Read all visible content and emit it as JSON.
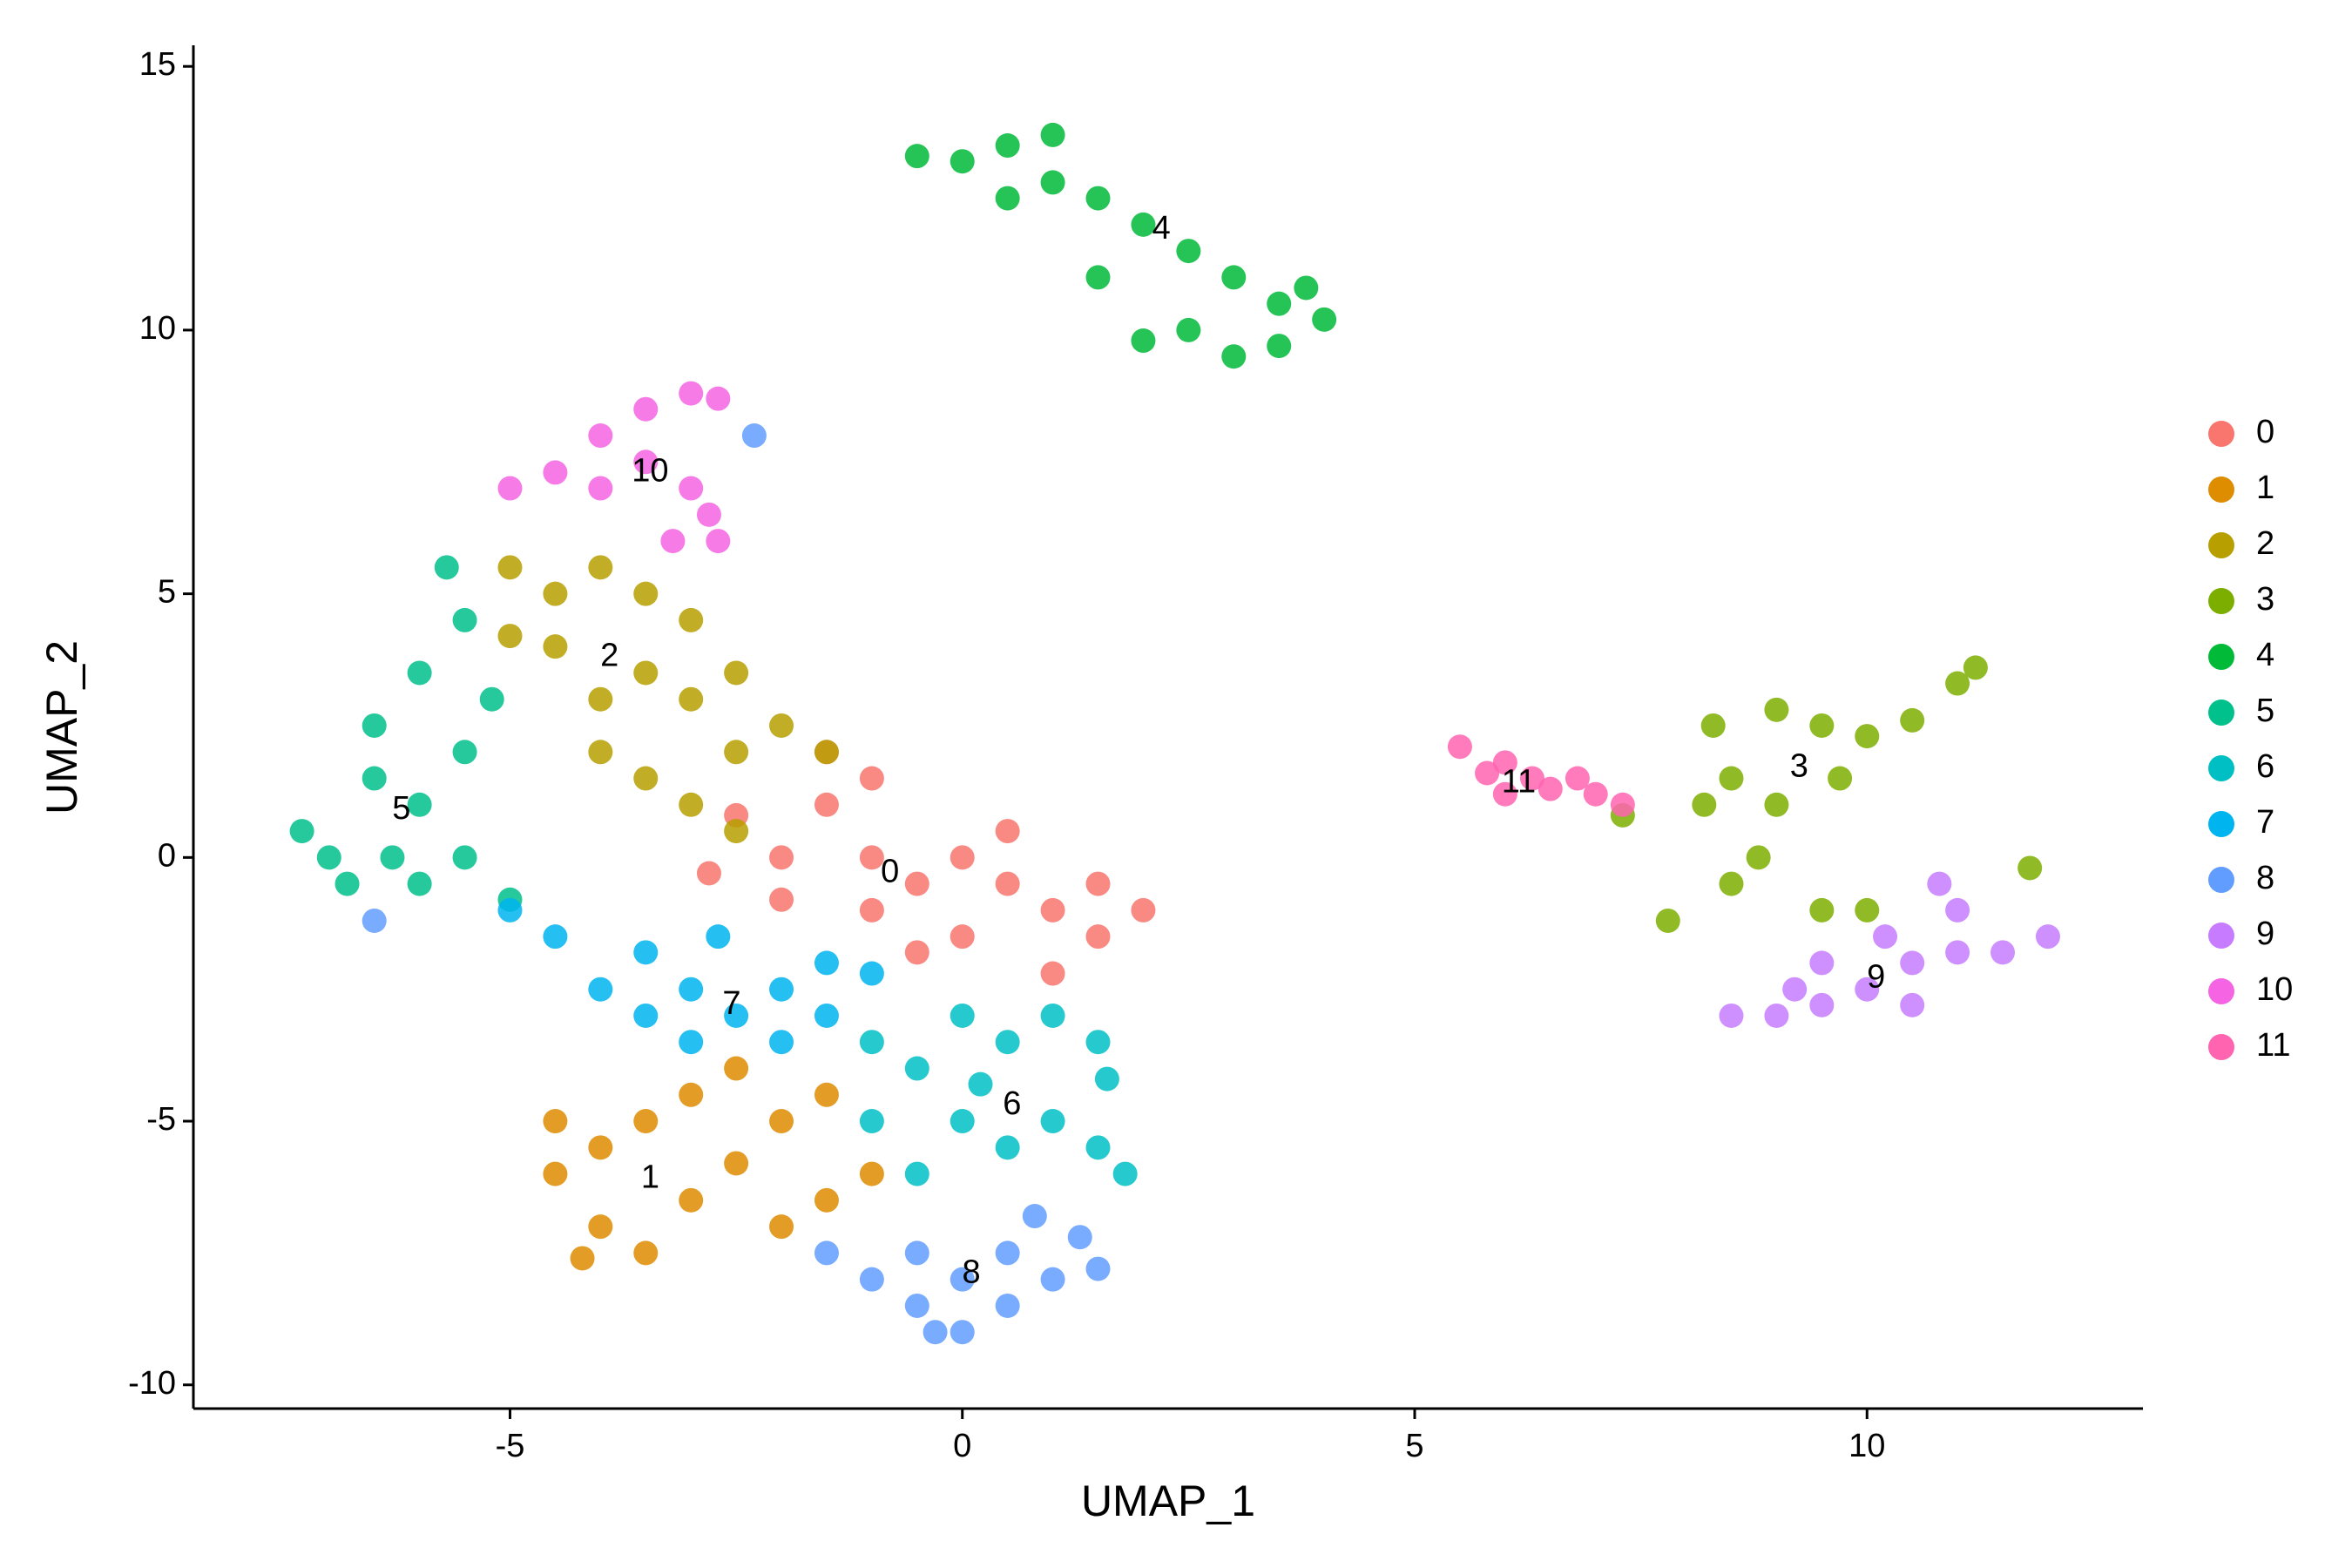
{
  "chart_data": {
    "type": "scatter",
    "x_label": "UMAP_1",
    "y_label": "UMAP_2",
    "xlim": [
      -8.5,
      13.05
    ],
    "ylim": [
      -10.45,
      15.4
    ],
    "xticks": [
      -5,
      0,
      5,
      10
    ],
    "yticks": [
      -10,
      -5,
      0,
      5,
      10,
      15
    ],
    "grid": false,
    "legend": "right",
    "series": [
      {
        "name": "0",
        "color": "#F8766D",
        "x": [
          -2.5,
          -2,
          -1.5,
          -1,
          -1,
          -0.5,
          0,
          0.5,
          1,
          1.5,
          2,
          1.5,
          0,
          -1,
          -2,
          -1.5,
          0.5,
          1,
          -0.5,
          -2.8
        ],
        "y": [
          0.8,
          0,
          1,
          1.5,
          0,
          -0.5,
          0,
          -0.5,
          -1,
          -1.5,
          -1,
          -0.5,
          -1.5,
          -1,
          -0.8,
          2,
          0.5,
          -2.2,
          -1.8,
          -0.3
        ]
      },
      {
        "name": "1",
        "color": "#DE8C00",
        "x": [
          -4.5,
          -4,
          -3.5,
          -3,
          -4.5,
          -4,
          -3,
          -2.5,
          -2,
          -1.5,
          -2,
          -1,
          -3.5,
          -2.5,
          -4.2,
          -1.5
        ],
        "y": [
          -6,
          -7,
          -7.5,
          -6.5,
          -5,
          -5.5,
          -4.5,
          -4,
          -5,
          -6.5,
          -7,
          -6,
          -5,
          -5.8,
          -7.6,
          -4.5
        ]
      },
      {
        "name": "2",
        "color": "#B79F00",
        "x": [
          -5,
          -4.5,
          -4,
          -3.5,
          -3,
          -4.5,
          -4,
          -3.5,
          -3,
          -2.5,
          -4,
          -3.5,
          -3,
          -2.5,
          -2,
          -1.5,
          -2.5,
          -5
        ],
        "y": [
          5.5,
          5,
          5.5,
          5,
          4.5,
          4,
          3,
          3.5,
          3,
          3.5,
          2,
          1.5,
          1,
          2,
          2.5,
          2,
          0.5,
          4.2
        ]
      },
      {
        "name": "3",
        "color": "#7CAE00",
        "x": [
          8.3,
          9,
          9.5,
          10,
          10.5,
          11,
          11.2,
          8.5,
          9,
          9.7,
          8.8,
          8.5,
          7.8,
          9.5,
          10,
          8.2,
          11.8,
          7.3
        ],
        "y": [
          2.5,
          2.8,
          2.5,
          2.3,
          2.6,
          3.3,
          3.6,
          1.5,
          1,
          1.5,
          0,
          -0.5,
          -1.2,
          -1,
          -1,
          1,
          -0.2,
          0.8
        ]
      },
      {
        "name": "4",
        "color": "#00BA38",
        "x": [
          -0.5,
          0,
          0.5,
          1,
          0.5,
          1,
          1.5,
          2,
          2.5,
          3,
          3.5,
          4,
          3.5,
          3,
          2.5,
          2,
          1.5,
          3.8
        ],
        "y": [
          13.3,
          13.2,
          13.5,
          13.7,
          12.5,
          12.8,
          12.5,
          12,
          11.5,
          11,
          10.5,
          10.2,
          9.7,
          9.5,
          10,
          9.8,
          11,
          10.8
        ]
      },
      {
        "name": "5",
        "color": "#00C08B",
        "x": [
          -7.3,
          -7,
          -6.5,
          -6,
          -6.5,
          -6,
          -5.5,
          -5.7,
          -6,
          -5.5,
          -5,
          -6.8,
          -5.5,
          -5.2,
          -6.3
        ],
        "y": [
          0.5,
          0,
          1.5,
          1,
          2.5,
          3.5,
          4.5,
          5.5,
          -0.5,
          0,
          -0.8,
          -0.5,
          2,
          3,
          0
        ]
      },
      {
        "name": "6",
        "color": "#00BFC4",
        "x": [
          -1,
          -0.5,
          0,
          0.5,
          1,
          1.5,
          -1,
          0,
          0.5,
          1,
          1.5,
          1.8,
          -0.5,
          1.6,
          0.2
        ],
        "y": [
          -3.5,
          -4,
          -3,
          -3.5,
          -3,
          -3.5,
          -5,
          -5,
          -5.5,
          -5,
          -5.5,
          -6,
          -6,
          -4.2,
          -4.3
        ]
      },
      {
        "name": "7",
        "color": "#00B4F0",
        "x": [
          -4,
          -3.5,
          -3,
          -2.5,
          -2,
          -1.5,
          -1,
          -3.5,
          -4.5,
          -3,
          -2,
          -1.5,
          -5,
          -2.7
        ],
        "y": [
          -2.5,
          -3,
          -2.5,
          -3,
          -3.5,
          -3,
          -2.2,
          -1.8,
          -1.5,
          -3.5,
          -2.5,
          -2,
          -1,
          -1.5
        ]
      },
      {
        "name": "8",
        "color": "#619CFF",
        "x": [
          -1.5,
          -1,
          -0.5,
          0,
          0.5,
          1,
          1.3,
          0.5,
          -0.5,
          0,
          1.5,
          -0.3,
          0.8,
          -6.5,
          -2.3
        ],
        "y": [
          -7.5,
          -8,
          -8.5,
          -9,
          -8.5,
          -8,
          -7.2,
          -7.5,
          -7.5,
          -8,
          -7.8,
          -9,
          -6.8,
          -1.2,
          8
        ]
      },
      {
        "name": "9",
        "color": "#C77CFF",
        "x": [
          8.5,
          9,
          9.5,
          10,
          10.5,
          11,
          11,
          10.8,
          9.5,
          10.2,
          11.5,
          12,
          9.2,
          10.5
        ],
        "y": [
          -3,
          -3,
          -2.8,
          -2.5,
          -2,
          -1.8,
          -1,
          -0.5,
          -2,
          -1.5,
          -1.8,
          -1.5,
          -2.5,
          -2.8
        ]
      },
      {
        "name": "10",
        "color": "#F564E3",
        "x": [
          -4,
          -3.5,
          -3,
          -2.7,
          -4.5,
          -4,
          -3.5,
          -3,
          -2.8,
          -2.7,
          -5,
          -3.2
        ],
        "y": [
          8,
          8.5,
          8.8,
          8.7,
          7.3,
          7,
          7.5,
          7,
          6.5,
          6,
          7,
          6
        ]
      },
      {
        "name": "11",
        "color": "#FF64B0",
        "x": [
          5.5,
          6,
          6.3,
          6,
          6.5,
          7,
          7.3,
          6.8,
          5.8
        ],
        "y": [
          2.1,
          1.8,
          1.5,
          1.2,
          1.3,
          1.2,
          1,
          1.5,
          1.6
        ]
      }
    ],
    "annotations": [
      {
        "text": "0",
        "x": -0.8,
        "y": -0.3
      },
      {
        "text": "1",
        "x": -3.45,
        "y": -6.1
      },
      {
        "text": "2",
        "x": -3.9,
        "y": 3.8
      },
      {
        "text": "3",
        "x": 9.25,
        "y": 1.7
      },
      {
        "text": "4",
        "x": 2.2,
        "y": 11.9
      },
      {
        "text": "5",
        "x": -6.2,
        "y": 0.9
      },
      {
        "text": "6",
        "x": 0.55,
        "y": -4.7
      },
      {
        "text": "7",
        "x": -2.55,
        "y": -2.8
      },
      {
        "text": "8",
        "x": 0.1,
        "y": -7.9
      },
      {
        "text": "9",
        "x": 10.1,
        "y": -2.3
      },
      {
        "text": "10",
        "x": -3.45,
        "y": 7.3
      },
      {
        "text": "11",
        "x": 6.15,
        "y": 1.4
      }
    ]
  }
}
